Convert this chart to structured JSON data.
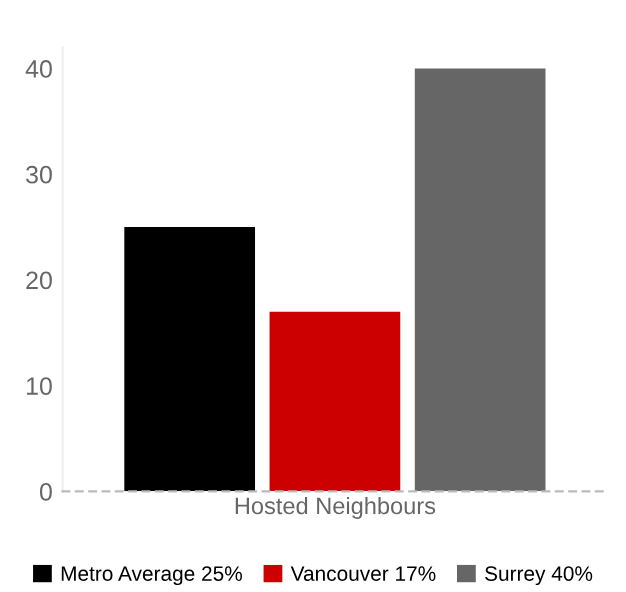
{
  "chart_data": {
    "type": "bar",
    "categories": [
      "Hosted Neighbours"
    ],
    "series": [
      {
        "name": "Metro Average 25%",
        "color": "#000000",
        "values": [
          25
        ]
      },
      {
        "name": "Vancouver 17%",
        "color": "#cc0000",
        "values": [
          17
        ]
      },
      {
        "name": "Surrey 40%",
        "color": "#666666",
        "values": [
          40
        ]
      }
    ],
    "ylim": [
      0,
      42
    ],
    "yticks": [
      0,
      10,
      20,
      30,
      40
    ],
    "grid": false,
    "legend": "bottom"
  }
}
